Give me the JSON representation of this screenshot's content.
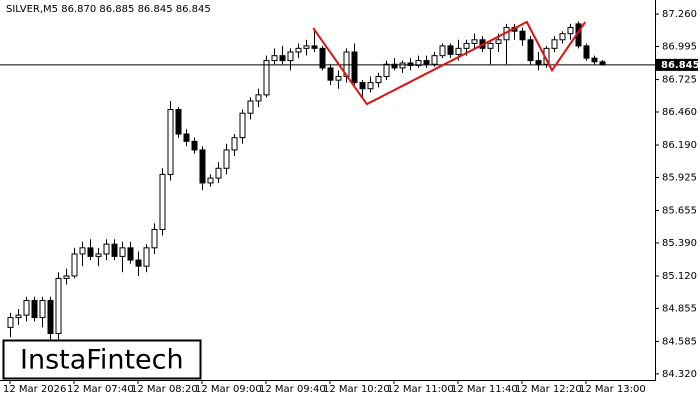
{
  "chart_data": {
    "type": "candlestick",
    "title": "SILVER,M5  86.870 86.885 86.845 86.845",
    "logo": "InstaFintech",
    "categories": [
      "12 Mar 2026",
      null,
      null,
      null,
      null,
      null,
      null,
      null,
      "12 Mar 07:40",
      null,
      null,
      null,
      null,
      null,
      null,
      null,
      "12 Mar 08:20",
      null,
      null,
      null,
      null,
      null,
      null,
      null,
      "12 Mar 09:00",
      null,
      null,
      null,
      null,
      null,
      null,
      null,
      "12 Mar 09:40",
      null,
      null,
      null,
      null,
      null,
      null,
      null,
      "12 Mar 10:20",
      null,
      null,
      null,
      null,
      null,
      null,
      null,
      "12 Mar 11:00",
      null,
      null,
      null,
      null,
      null,
      null,
      null,
      "12 Mar 11:40",
      null,
      null,
      null,
      null,
      null,
      null,
      null,
      "12 Mar 12:20",
      null,
      null,
      null,
      null,
      null,
      null,
      null,
      "12 Mar 13:00",
      null,
      null
    ],
    "open": [
      84.7,
      84.78,
      84.8,
      84.92,
      84.78,
      84.92,
      84.65,
      85.1,
      85.12,
      85.3,
      85.35,
      85.28,
      85.3,
      85.38,
      85.28,
      85.35,
      85.25,
      85.2,
      85.35,
      85.5,
      85.95,
      86.48,
      86.28,
      86.22,
      86.15,
      85.88,
      85.92,
      86.0,
      86.15,
      86.25,
      86.45,
      86.55,
      86.6,
      86.88,
      86.92,
      86.88,
      86.95,
      86.98,
      87.0,
      86.98,
      86.82,
      86.72,
      86.75,
      86.95,
      86.7,
      86.65,
      86.7,
      86.75,
      86.85,
      86.82,
      86.86,
      86.84,
      86.88,
      86.85,
      86.92,
      87.0,
      86.93,
      86.98,
      87.02,
      87.05,
      86.98,
      87.02,
      87.05,
      87.15,
      87.12,
      87.05,
      86.88,
      86.85,
      86.98,
      87.05,
      87.1,
      87.18,
      87.0,
      86.9,
      86.87
    ],
    "high": [
      84.82,
      84.85,
      84.95,
      84.95,
      84.95,
      84.95,
      85.15,
      85.18,
      85.35,
      85.4,
      85.42,
      85.35,
      85.42,
      85.42,
      85.4,
      85.4,
      85.32,
      85.38,
      85.55,
      86.0,
      86.55,
      86.5,
      86.32,
      86.25,
      86.18,
      85.95,
      86.05,
      86.2,
      86.28,
      86.48,
      86.58,
      86.65,
      86.92,
      86.98,
      87.0,
      86.98,
      87.02,
      87.05,
      87.12,
      87.0,
      86.85,
      86.8,
      86.98,
      87.02,
      86.72,
      86.75,
      86.78,
      86.88,
      86.9,
      86.88,
      86.9,
      86.92,
      86.92,
      86.95,
      87.02,
      87.02,
      87.05,
      87.05,
      87.1,
      87.08,
      87.05,
      87.1,
      87.18,
      87.18,
      87.15,
      87.08,
      86.95,
      87.0,
      87.08,
      87.12,
      87.18,
      87.2,
      87.02,
      86.92,
      86.885
    ],
    "low": [
      84.62,
      84.72,
      84.75,
      84.75,
      84.7,
      84.6,
      84.6,
      85.05,
      85.1,
      85.2,
      85.25,
      85.2,
      85.25,
      85.25,
      85.15,
      85.22,
      85.12,
      85.15,
      85.3,
      85.45,
      85.9,
      86.25,
      86.18,
      86.12,
      85.82,
      85.85,
      85.88,
      85.95,
      86.1,
      86.2,
      86.4,
      86.5,
      86.58,
      86.85,
      86.85,
      86.8,
      86.9,
      86.92,
      86.95,
      86.8,
      86.68,
      86.65,
      86.7,
      86.68,
      86.58,
      86.62,
      86.66,
      86.72,
      86.8,
      86.78,
      86.8,
      86.82,
      86.82,
      86.83,
      86.9,
      86.9,
      86.88,
      86.92,
      86.98,
      86.95,
      86.85,
      86.95,
      86.85,
      87.05,
      87.0,
      86.85,
      86.8,
      86.82,
      86.95,
      87.02,
      87.05,
      86.98,
      86.88,
      86.85,
      86.845
    ],
    "close": [
      84.78,
      84.8,
      84.92,
      84.78,
      84.92,
      84.65,
      85.1,
      85.12,
      85.3,
      85.35,
      85.28,
      85.3,
      85.38,
      85.28,
      85.35,
      85.25,
      85.2,
      85.35,
      85.5,
      85.95,
      86.48,
      86.28,
      86.22,
      86.15,
      85.88,
      85.92,
      86.0,
      86.15,
      86.25,
      86.45,
      86.55,
      86.6,
      86.88,
      86.92,
      86.88,
      86.95,
      86.98,
      87.0,
      86.98,
      86.82,
      86.72,
      86.75,
      86.95,
      86.7,
      86.65,
      86.7,
      86.75,
      86.85,
      86.82,
      86.86,
      86.84,
      86.88,
      86.85,
      86.92,
      87.0,
      86.93,
      86.98,
      87.02,
      87.05,
      86.98,
      87.02,
      87.05,
      87.15,
      87.12,
      87.05,
      86.88,
      86.85,
      86.98,
      87.05,
      87.1,
      87.15,
      87.0,
      86.9,
      86.87,
      86.845
    ],
    "ylim": [
      84.27,
      87.375
    ],
    "yticks": [
      {
        "value": 87.26,
        "label": "87.260"
      },
      86.995,
      86.725,
      {
        "value": 86.46,
        "label": "86.460"
      },
      {
        "value": 86.19,
        "label": "86.190"
      },
      85.925,
      85.655,
      {
        "value": 85.39,
        "label": "85.390"
      },
      {
        "value": 85.12,
        "label": "85.120"
      },
      84.855,
      84.585,
      {
        "value": 84.32,
        "label": "84.320"
      }
    ],
    "price_line": {
      "value": 86.845,
      "label": "86.845"
    },
    "pattern": {
      "color": "#e01010",
      "x": [
        37.9,
        44.6,
        64.6,
        67.75,
        71.9
      ],
      "y": [
        87.146,
        86.524,
        87.195,
        86.8,
        87.195
      ]
    },
    "up_color": "#ffffff",
    "down_color": "#000000",
    "grid": false
  }
}
